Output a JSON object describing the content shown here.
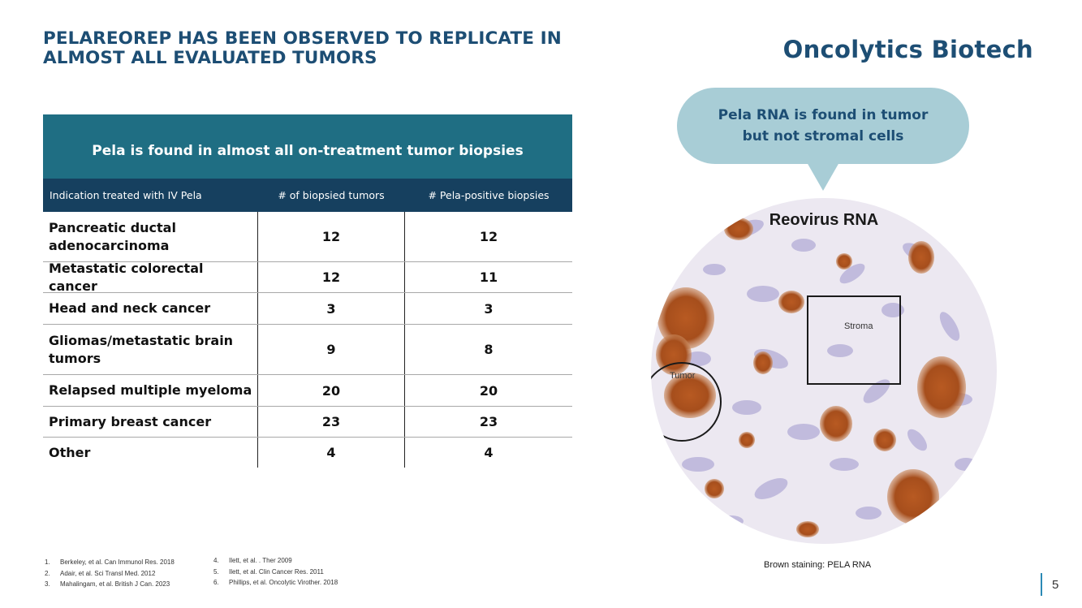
{
  "title": "PELAREOREP HAS BEEN OBSERVED TO REPLICATE IN ALMOST ALL EVALUATED TUMORS",
  "brand": "Oncolytics Biotech",
  "table": {
    "banner": "Pela is found in almost all on-treatment tumor biopsies",
    "headers": [
      "Indication treated with IV Pela",
      "# of biopsied tumors",
      "# Pela-positive biopsies"
    ],
    "rows": [
      {
        "indication": "Pancreatic ductal adenocarcinoma",
        "biopsied": "12",
        "positive": "12"
      },
      {
        "indication": "Metastatic colorectal cancer",
        "biopsied": "12",
        "positive": "11"
      },
      {
        "indication": "Head and neck cancer",
        "biopsied": "3",
        "positive": "3"
      },
      {
        "indication": "Gliomas/metastatic brain tumors",
        "biopsied": "9",
        "positive": "8"
      },
      {
        "indication": "Relapsed multiple myeloma",
        "biopsied": "20",
        "positive": "20"
      },
      {
        "indication": "Primary breast cancer",
        "biopsied": "23",
        "positive": "23"
      },
      {
        "indication": "Other",
        "biopsied": "4",
        "positive": "4"
      }
    ]
  },
  "footnotes": [
    {
      "num": "1.",
      "text": "Berkeley, et al. Can Immunol Res. 2018"
    },
    {
      "num": "2.",
      "text": "Adair, et al. Sci Transl Med. 2012"
    },
    {
      "num": "3.",
      "text": "Mahalingam, et al. British J Can. 2023"
    },
    {
      "num": "4.",
      "text": "Ilett, et al. . Ther 2009"
    },
    {
      "num": "5.",
      "text": "Ilett, et al. Clin Cancer Res. 2011"
    },
    {
      "num": "6.",
      "text": "Phillips, et al. Oncolytic Virother. 2018"
    }
  ],
  "callout": "Pela RNA is found in tumor but not stromal cells",
  "image": {
    "label": "Reovirus RNA",
    "stroma_label": "Stroma",
    "tumor_label": "Tumor",
    "caption": "Brown staining: PELA RNA"
  },
  "page_number": "5"
}
